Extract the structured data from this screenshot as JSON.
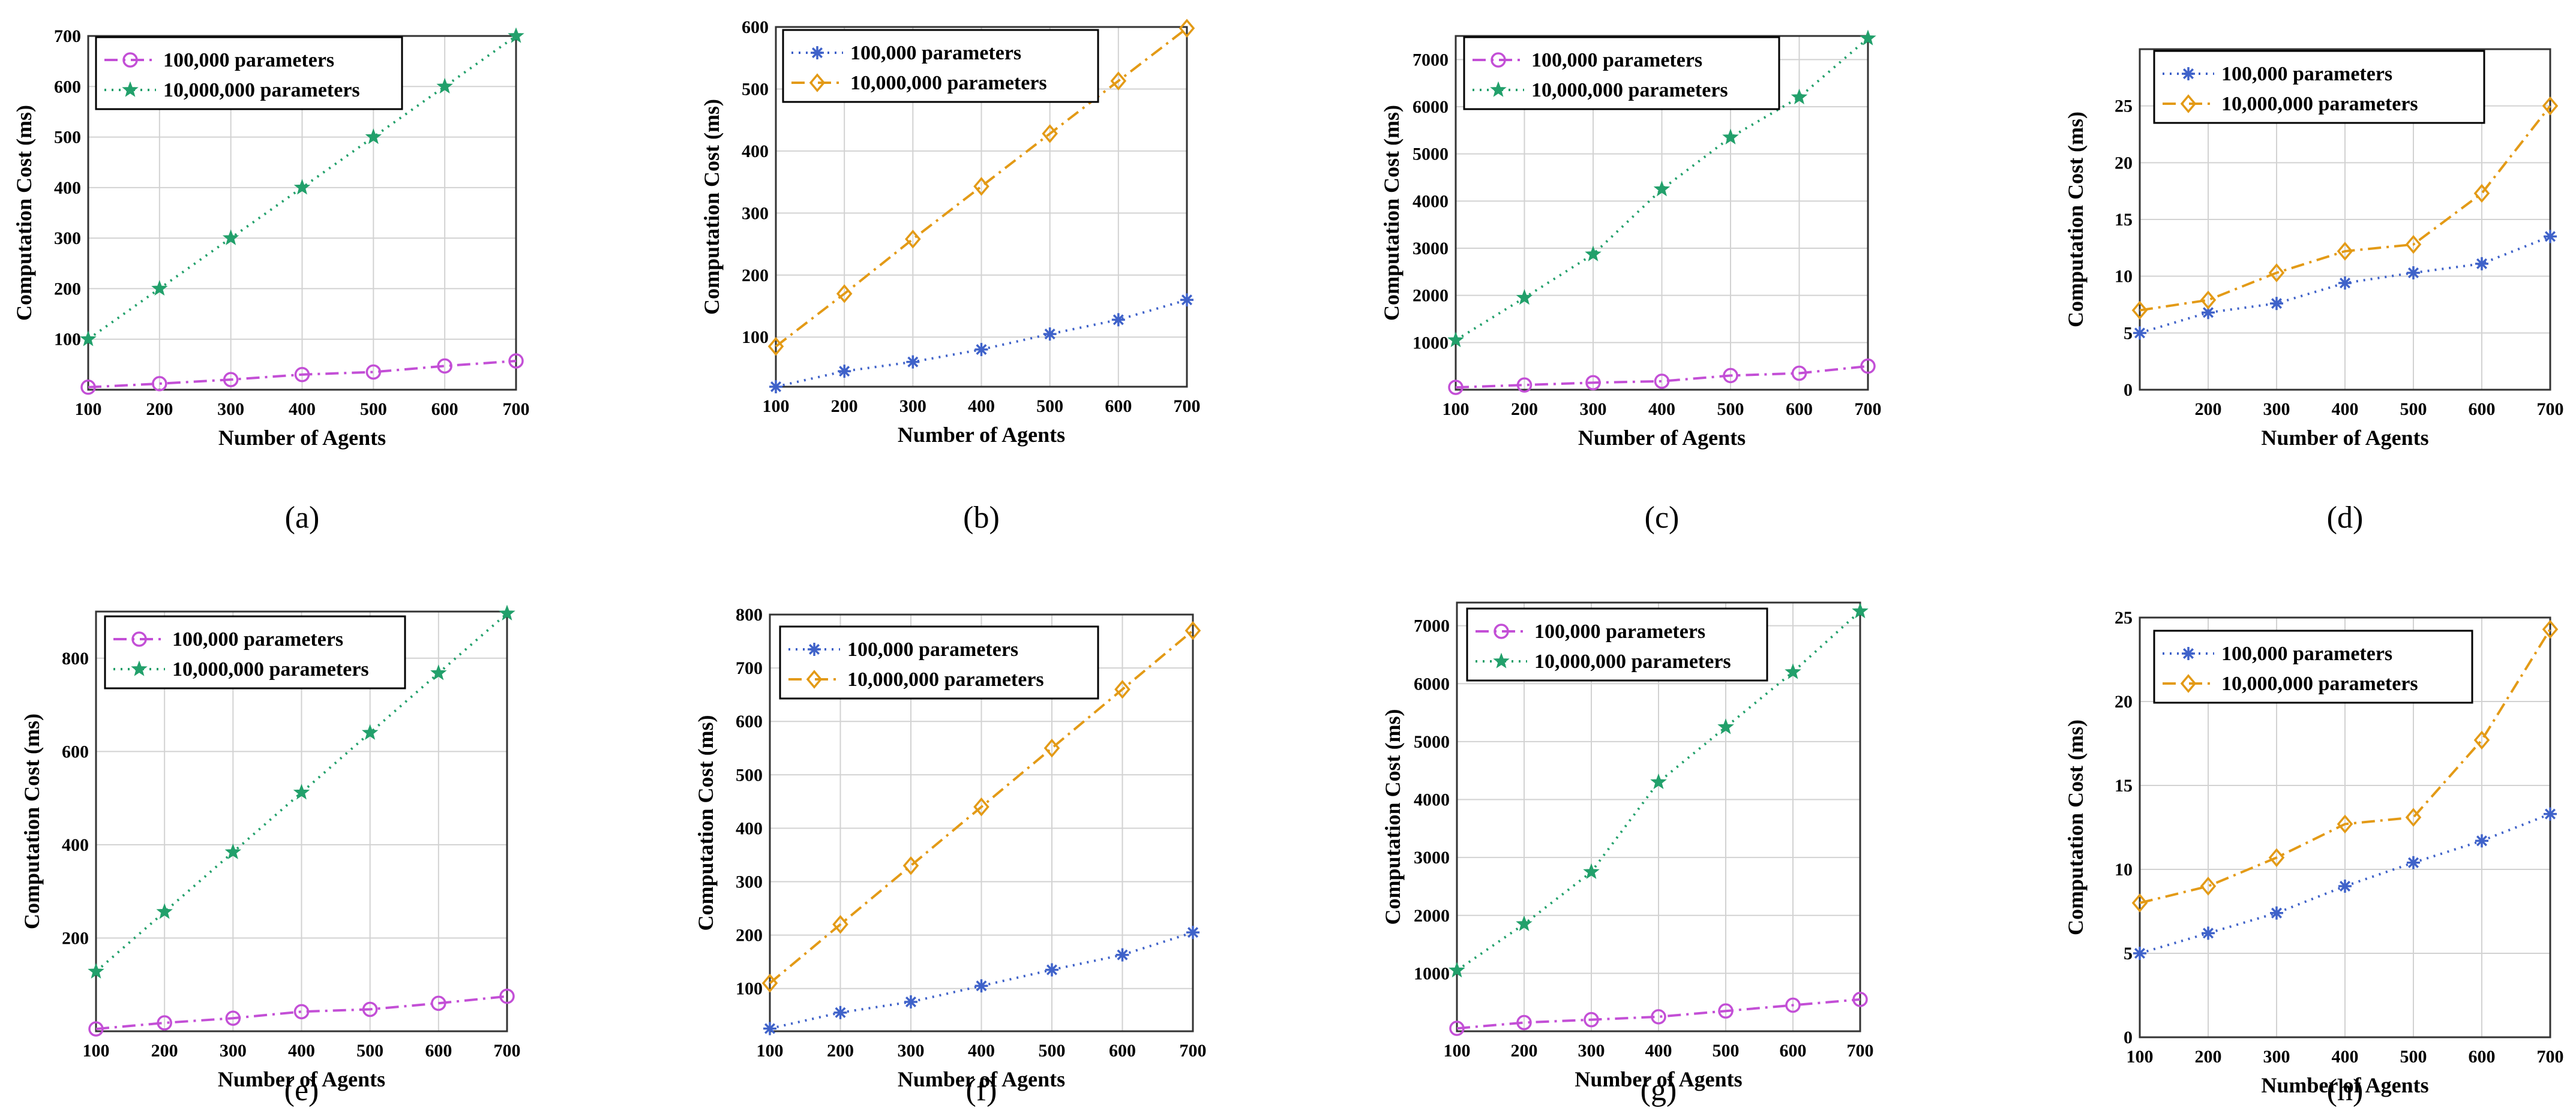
{
  "figure": {
    "panels": [
      {
        "caption": "(a)",
        "yticks": [
          100,
          200,
          300,
          400,
          500,
          600,
          700
        ]
      },
      {
        "caption": "(b)",
        "yticks": [
          100,
          200,
          300,
          400,
          500,
          600
        ]
      },
      {
        "caption": "(c)",
        "yticks": [
          1000,
          2000,
          3000,
          4000,
          5000,
          6000,
          7000
        ]
      },
      {
        "caption": "(d)",
        "yticks": [
          0,
          5,
          10,
          15,
          20,
          25
        ]
      },
      {
        "caption": "(e)",
        "yticks": [
          200,
          400,
          600,
          800
        ]
      },
      {
        "caption": "(f)",
        "yticks": [
          100,
          200,
          300,
          400,
          500,
          600,
          700,
          800
        ]
      },
      {
        "caption": "(g)",
        "yticks": [
          1000,
          2000,
          3000,
          4000,
          5000,
          6000,
          7000
        ]
      },
      {
        "caption": "(h)",
        "yticks": [
          0,
          5,
          10,
          15,
          20,
          25
        ]
      }
    ]
  },
  "colors": {
    "magenta": "#c34fd6",
    "green": "#22a06b",
    "blue": "#3f62c9",
    "orange": "#e39a16"
  },
  "chart_data": [
    {
      "type": "line",
      "panel": "(a)",
      "title": "",
      "xlabel": "Number of Agents",
      "ylabel": "Computation Cost (ms)",
      "x": [
        100,
        200,
        300,
        400,
        500,
        600,
        700
      ],
      "xlim": [
        100,
        700
      ],
      "ylim": [
        0,
        700
      ],
      "grid": true,
      "legend": "top-left",
      "xticks": [
        100,
        200,
        300,
        400,
        500,
        600,
        700
      ],
      "series": [
        {
          "name": "100,000  parameters",
          "marker": "circle",
          "style": "dashdot",
          "color": "magenta",
          "values": [
            5,
            12,
            20,
            30,
            35,
            47,
            57
          ]
        },
        {
          "name": "10,000,000 parameters",
          "marker": "star",
          "style": "dotted",
          "color": "green",
          "values": [
            100,
            200,
            300,
            400,
            500,
            600,
            700
          ]
        }
      ]
    },
    {
      "type": "line",
      "panel": "(b)",
      "title": "",
      "xlabel": "Number of Agents",
      "ylabel": "Computation Cost (ms)",
      "x": [
        100,
        200,
        300,
        400,
        500,
        600,
        700
      ],
      "xlim": [
        100,
        700
      ],
      "ylim": [
        20,
        600
      ],
      "grid": true,
      "legend": "top-left",
      "xticks": [
        100,
        200,
        300,
        400,
        500,
        600,
        700
      ],
      "series": [
        {
          "name": "100,000  parameters",
          "marker": "asterisk",
          "style": "dotted",
          "color": "blue",
          "values": [
            20,
            45,
            60,
            80,
            105,
            128,
            160
          ]
        },
        {
          "name": "10,000,000 parameters",
          "marker": "diamond",
          "style": "dashdot",
          "color": "orange",
          "values": [
            85,
            170,
            258,
            343,
            428,
            513,
            598
          ]
        }
      ]
    },
    {
      "type": "line",
      "panel": "(c)",
      "title": "",
      "xlabel": "Number of Agents",
      "ylabel": "Computation Cost (ms)",
      "x": [
        100,
        200,
        300,
        400,
        500,
        600,
        700
      ],
      "xlim": [
        100,
        700
      ],
      "ylim": [
        0,
        7500
      ],
      "grid": true,
      "legend": "top-left",
      "xticks": [
        100,
        200,
        300,
        400,
        500,
        600,
        700
      ],
      "series": [
        {
          "name": "100,000  parameters",
          "marker": "circle",
          "style": "dashdot",
          "color": "magenta",
          "values": [
            50,
            100,
            150,
            180,
            300,
            350,
            500
          ]
        },
        {
          "name": "10,000,000 parameters",
          "marker": "star",
          "style": "dotted",
          "color": "green",
          "values": [
            1050,
            1950,
            2870,
            4250,
            5350,
            6200,
            7450
          ]
        }
      ]
    },
    {
      "type": "line",
      "panel": "(d)",
      "title": "",
      "xlabel": "Number of Agents",
      "ylabel": "Computation Cost (ms)",
      "x": [
        100,
        200,
        300,
        400,
        500,
        600,
        700
      ],
      "xlim": [
        100,
        700
      ],
      "ylim": [
        0,
        30
      ],
      "grid": true,
      "legend": "top",
      "xticks": [
        200,
        300,
        400,
        500,
        600,
        700
      ],
      "series": [
        {
          "name": "100,000  parameters",
          "marker": "asterisk",
          "style": "dotted",
          "color": "blue",
          "values": [
            5,
            6.8,
            7.6,
            9.4,
            10.3,
            11.1,
            13.5
          ]
        },
        {
          "name": "10,000,000 parameters",
          "marker": "diamond",
          "style": "dashdot",
          "color": "orange",
          "values": [
            7,
            7.9,
            10.3,
            12.2,
            12.8,
            17.3,
            25
          ]
        }
      ]
    },
    {
      "type": "line",
      "panel": "(e)",
      "title": "",
      "xlabel": "Number of Agents",
      "ylabel": "Computation Cost (ms)",
      "x": [
        100,
        200,
        300,
        400,
        500,
        600,
        700
      ],
      "xlim": [
        100,
        700
      ],
      "ylim": [
        0,
        900
      ],
      "grid": true,
      "legend": "top-left",
      "xticks": [
        100,
        200,
        300,
        400,
        500,
        600,
        700
      ],
      "series": [
        {
          "name": "100,000  parameters",
          "marker": "circle",
          "style": "dashdot",
          "color": "magenta",
          "values": [
            5,
            18,
            28,
            42,
            47,
            60,
            75
          ]
        },
        {
          "name": "10,000,000 parameters",
          "marker": "star",
          "style": "dotted",
          "color": "green",
          "values": [
            128,
            256,
            384,
            512,
            640,
            768,
            896
          ]
        }
      ]
    },
    {
      "type": "line",
      "panel": "(f)",
      "title": "",
      "xlabel": "Number of Agents",
      "ylabel": "Computation Cost (ms)",
      "x": [
        100,
        200,
        300,
        400,
        500,
        600,
        700
      ],
      "xlim": [
        100,
        700
      ],
      "ylim": [
        20,
        800
      ],
      "grid": true,
      "legend": "top-left",
      "xticks": [
        100,
        200,
        300,
        400,
        500,
        600,
        700
      ],
      "series": [
        {
          "name": "100,000  parameters",
          "marker": "asterisk",
          "style": "dotted",
          "color": "blue",
          "values": [
            25,
            55,
            75,
            105,
            135,
            163,
            205
          ]
        },
        {
          "name": "10,000,000 parameters",
          "marker": "diamond",
          "style": "dashdot",
          "color": "orange",
          "values": [
            110,
            220,
            330,
            440,
            550,
            660,
            770
          ]
        }
      ]
    },
    {
      "type": "line",
      "panel": "(g)",
      "title": "",
      "xlabel": "Number of Agents",
      "ylabel": "Computation Cost (ms)",
      "x": [
        100,
        200,
        300,
        400,
        500,
        600,
        700
      ],
      "xlim": [
        100,
        700
      ],
      "ylim": [
        0,
        7400
      ],
      "grid": true,
      "legend": "top-left",
      "xticks": [
        100,
        200,
        300,
        400,
        500,
        600,
        700
      ],
      "series": [
        {
          "name": "100,000  parameters",
          "marker": "circle",
          "style": "dashdot",
          "color": "magenta",
          "values": [
            50,
            150,
            200,
            250,
            350,
            450,
            550
          ]
        },
        {
          "name": "10,000,000 parameters",
          "marker": "star",
          "style": "dotted",
          "color": "green",
          "values": [
            1050,
            1850,
            2750,
            4300,
            5250,
            6200,
            7250
          ]
        }
      ]
    },
    {
      "type": "line",
      "panel": "(h)",
      "title": "",
      "xlabel": "Number of Agents",
      "ylabel": "Computation Cost (ms)",
      "x": [
        100,
        200,
        300,
        400,
        500,
        600,
        700
      ],
      "xlim": [
        100,
        700
      ],
      "ylim": [
        0,
        25
      ],
      "grid": true,
      "legend": "top-left",
      "xticks": [
        100,
        200,
        300,
        400,
        500,
        600,
        700
      ],
      "series": [
        {
          "name": "100,000  parameters",
          "marker": "asterisk",
          "style": "dotted",
          "color": "blue",
          "values": [
            5,
            6.2,
            7.4,
            9,
            10.4,
            11.7,
            13.3
          ]
        },
        {
          "name": "10,000,000 parameters",
          "marker": "diamond",
          "style": "dashdot",
          "color": "orange",
          "values": [
            8,
            9,
            10.7,
            12.7,
            13.1,
            17.7,
            24.3
          ]
        }
      ]
    }
  ]
}
